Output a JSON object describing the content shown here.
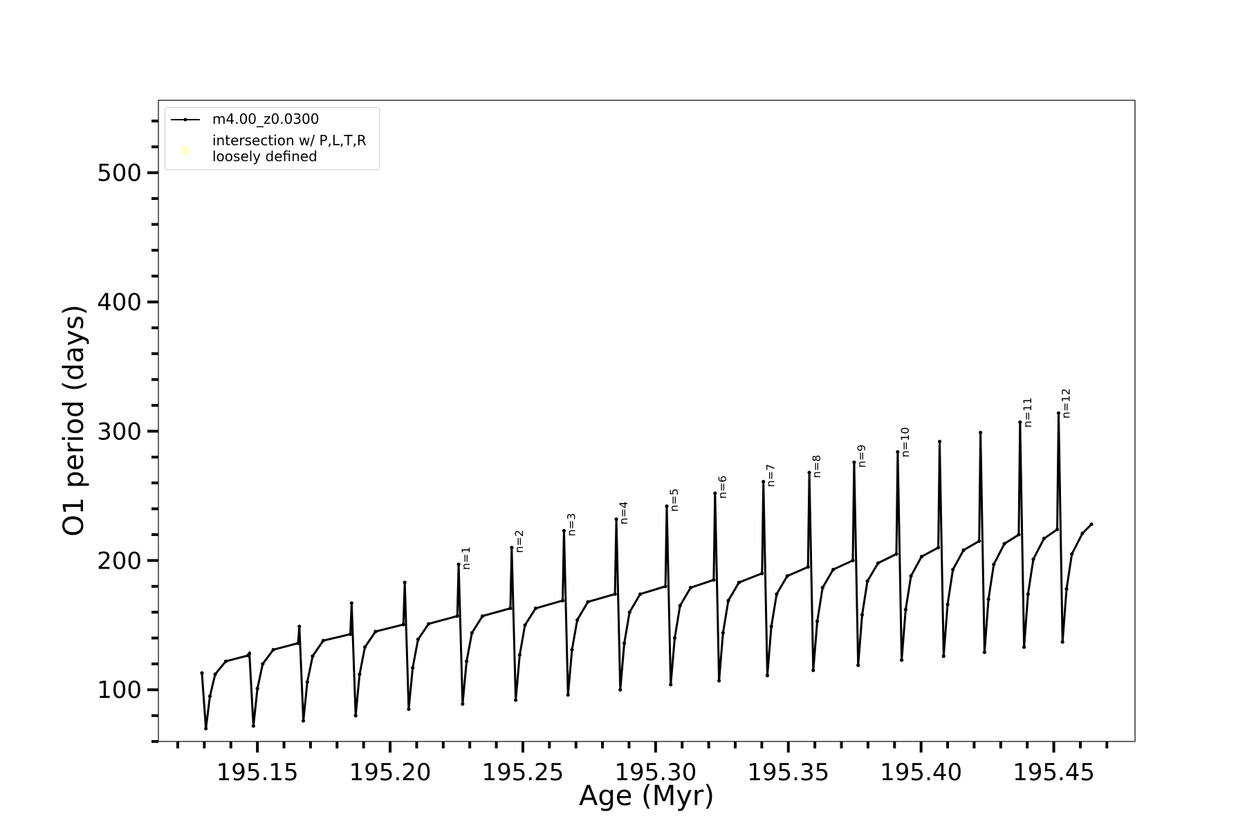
{
  "chart_data": {
    "type": "line",
    "xlabel": "Age (Myr)",
    "ylabel": "O1 period (days)",
    "xlim": [
      195.1127,
      195.4806
    ],
    "ylim": [
      60,
      556
    ],
    "xticks": [
      195.15,
      195.2,
      195.25,
      195.3,
      195.35,
      195.4,
      195.45
    ],
    "xminorticks": [
      195.12,
      195.13,
      195.14,
      195.16,
      195.17,
      195.18,
      195.19,
      195.21,
      195.22,
      195.23,
      195.24,
      195.26,
      195.27,
      195.28,
      195.29,
      195.31,
      195.32,
      195.33,
      195.34,
      195.36,
      195.37,
      195.38,
      195.39,
      195.41,
      195.42,
      195.43,
      195.44,
      195.46,
      195.47
    ],
    "yticks": [
      100,
      200,
      300,
      400,
      500
    ],
    "yminorticks": [
      60,
      80,
      120,
      140,
      160,
      180,
      220,
      240,
      260,
      280,
      320,
      340,
      360,
      380,
      420,
      440,
      460,
      480,
      520,
      540
    ],
    "grid": false,
    "legend": "upper left",
    "series": [
      {
        "name": "m4.00_z0.0300",
        "color": "#000000",
        "marker": "dot",
        "x": [
          195.1291,
          195.1306,
          195.1321,
          195.1341,
          195.1381,
          195.1465,
          195.147,
          195.1485,
          195.15,
          195.152,
          195.156,
          195.1653,
          195.1658,
          195.1673,
          195.1688,
          195.1708,
          195.1748,
          195.185,
          195.1855,
          195.187,
          195.1885,
          195.1905,
          195.1945,
          195.205,
          195.2055,
          195.207,
          195.2085,
          195.2105,
          195.2145,
          195.2253,
          195.2258,
          195.2273,
          195.2288,
          195.2308,
          195.2348,
          195.2453,
          195.2458,
          195.2473,
          195.2488,
          195.2508,
          195.2548,
          195.265,
          195.2655,
          195.267,
          195.2685,
          195.2705,
          195.2745,
          195.2847,
          195.2852,
          195.2867,
          195.2882,
          195.2902,
          195.2942,
          195.3037,
          195.3042,
          195.3057,
          195.3072,
          195.3092,
          195.3132,
          195.3219,
          195.3224,
          195.3239,
          195.3254,
          195.3274,
          195.3314,
          195.3401,
          195.3406,
          195.3421,
          195.3436,
          195.3456,
          195.3496,
          195.3574,
          195.3579,
          195.3594,
          195.3609,
          195.3629,
          195.3669,
          195.3743,
          195.3748,
          195.3763,
          195.3778,
          195.3798,
          195.3838,
          195.3907,
          195.3912,
          195.3927,
          195.3942,
          195.3962,
          195.4002,
          195.4065,
          195.407,
          195.4085,
          195.41,
          195.412,
          195.416,
          195.4219,
          195.4224,
          195.4239,
          195.4254,
          195.4274,
          195.4314,
          195.4368,
          195.4373,
          195.4388,
          195.4403,
          195.4423,
          195.4463,
          195.4513,
          195.4518,
          195.4533,
          195.4548,
          195.4568,
          195.4608,
          195.4642
        ],
        "values": [
          113,
          70,
          95,
          112,
          122,
          126.5,
          128,
          72,
          101,
          120,
          131,
          136,
          149,
          76,
          106,
          126,
          138,
          143,
          167,
          80,
          112,
          133,
          145,
          150.5,
          183,
          85,
          117,
          139,
          151,
          157,
          197,
          89,
          122,
          144,
          157,
          163,
          210,
          92,
          127,
          150,
          163,
          169,
          223,
          96,
          131,
          154,
          168,
          174,
          232,
          100,
          136,
          160,
          174,
          180,
          242,
          104,
          140,
          165,
          179,
          185,
          252,
          107,
          144,
          169,
          183,
          190,
          261,
          111,
          149,
          174,
          188,
          195,
          268,
          115,
          153,
          179,
          193,
          200,
          276,
          119,
          158,
          184,
          198,
          205,
          284,
          123,
          162,
          188,
          203,
          210,
          292,
          126,
          166,
          193,
          208,
          215,
          299,
          129,
          170,
          197,
          213,
          220,
          307,
          133,
          174,
          201,
          217,
          224,
          314,
          137,
          178,
          205,
          221,
          228
        ]
      },
      {
        "name": "intersection w/ P,L,T,R\nloosely defined",
        "color": "#ffffcc",
        "marker": "circle",
        "x": [],
        "values": []
      }
    ],
    "annotations": [
      {
        "text": "n=1",
        "x": 195.2258,
        "y": 197
      },
      {
        "text": "n=2",
        "x": 195.2458,
        "y": 210
      },
      {
        "text": "n=3",
        "x": 195.2655,
        "y": 223
      },
      {
        "text": "n=4",
        "x": 195.2852,
        "y": 232
      },
      {
        "text": "n=5",
        "x": 195.3042,
        "y": 242
      },
      {
        "text": "n=6",
        "x": 195.3224,
        "y": 252
      },
      {
        "text": "n=7",
        "x": 195.3406,
        "y": 261
      },
      {
        "text": "n=8",
        "x": 195.3579,
        "y": 268
      },
      {
        "text": "n=9",
        "x": 195.3748,
        "y": 276
      },
      {
        "text": "n=10",
        "x": 195.3912,
        "y": 284
      },
      {
        "text": "n=11",
        "x": 195.4373,
        "y": 307
      },
      {
        "text": "n=12",
        "x": 195.4518,
        "y": 314
      }
    ]
  }
}
